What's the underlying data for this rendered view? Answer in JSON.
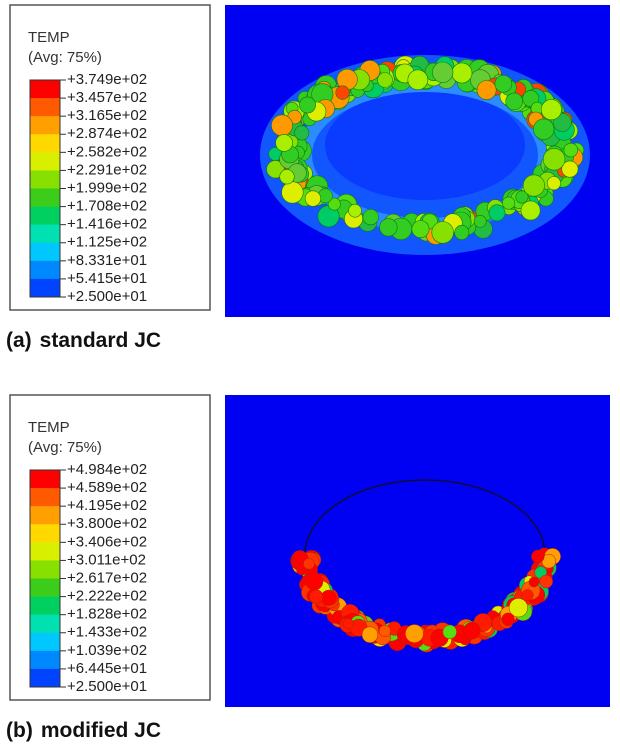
{
  "panels": [
    {
      "legend": {
        "title": "TEMP",
        "subtitle": "(Avg: 75%)",
        "labels": [
          "+3.749e+02",
          "+3.457e+02",
          "+3.165e+02",
          "+2.874e+02",
          "+2.582e+02",
          "+2.291e+02",
          "+1.999e+02",
          "+1.708e+02",
          "+1.416e+02",
          "+1.125e+02",
          "+8.331e+01",
          "+5.415e+01",
          "+2.500e+01"
        ],
        "colors": [
          "#ff0000",
          "#ff5a00",
          "#ffa000",
          "#ffd800",
          "#d8f000",
          "#88e000",
          "#3ccc1a",
          "#00d060",
          "#00e0b0",
          "#00c8ff",
          "#0088ff",
          "#0044ff"
        ]
      },
      "caption": {
        "label": "(a)",
        "text": "standard JC"
      }
    },
    {
      "legend": {
        "title": "TEMP",
        "subtitle": "(Avg: 75%)",
        "labels": [
          "+4.984e+02",
          "+4.589e+02",
          "+4.195e+02",
          "+3.800e+02",
          "+3.406e+02",
          "+3.011e+02",
          "+2.617e+02",
          "+2.222e+02",
          "+1.828e+02",
          "+1.433e+02",
          "+1.039e+02",
          "+6.445e+01",
          "+2.500e+01"
        ],
        "colors": [
          "#ff0000",
          "#ff5a00",
          "#ffa000",
          "#ffd800",
          "#d8f000",
          "#88e000",
          "#3ccc1a",
          "#00d060",
          "#00e0b0",
          "#00c8ff",
          "#0088ff",
          "#0044ff"
        ]
      },
      "caption": {
        "label": "(b)",
        "text": "modified JC"
      }
    }
  ]
}
